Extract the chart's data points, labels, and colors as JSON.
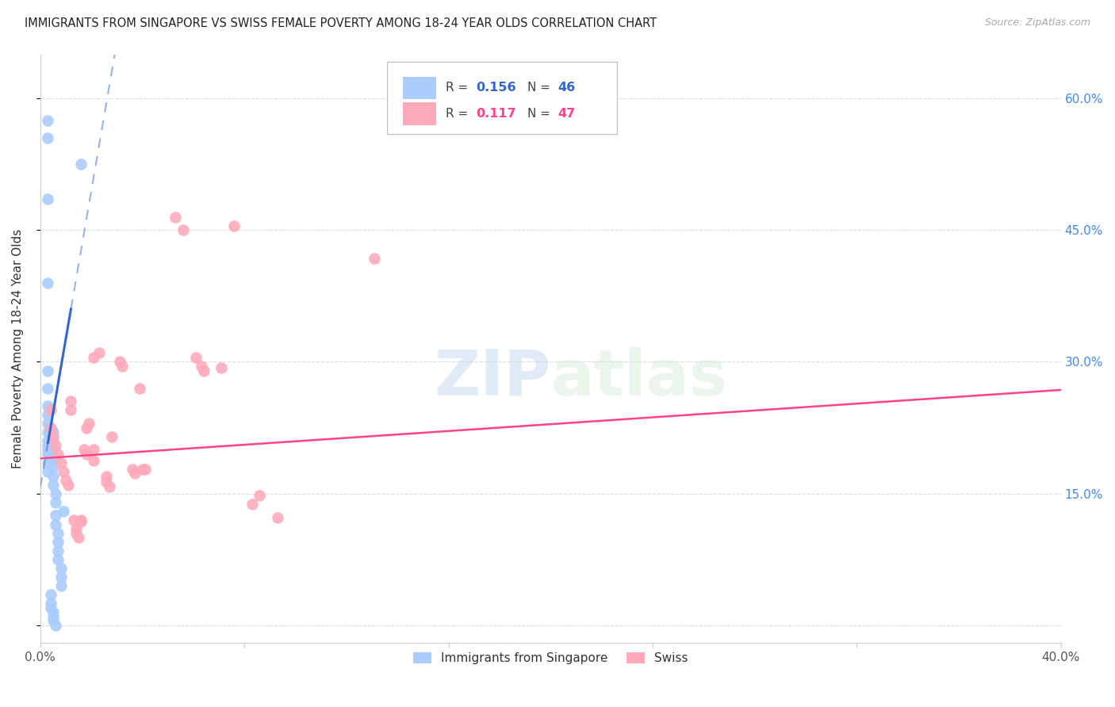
{
  "title": "IMMIGRANTS FROM SINGAPORE VS SWISS FEMALE POVERTY AMONG 18-24 YEAR OLDS CORRELATION CHART",
  "source": "Source: ZipAtlas.com",
  "ylabel": "Female Poverty Among 18-24 Year Olds",
  "xlim": [
    0.0,
    0.4
  ],
  "ylim": [
    -0.02,
    0.65
  ],
  "yticks": [
    0.0,
    0.15,
    0.3,
    0.45,
    0.6
  ],
  "ytick_labels": [
    "",
    "15.0%",
    "30.0%",
    "45.0%",
    "60.0%"
  ],
  "xticks": [
    0.0,
    0.08,
    0.16,
    0.24,
    0.32,
    0.4
  ],
  "xtick_labels": [
    "0.0%",
    "",
    "",
    "",
    "",
    "40.0%"
  ],
  "watermark": "ZIPatlas",
  "background_color": "#ffffff",
  "grid_color": "#dddddd",
  "title_color": "#222222",
  "axis_label_color": "#333333",
  "right_tick_color": "#4488ee",
  "singapore_color": "#aaccff",
  "swiss_color": "#ffaabb",
  "singapore_line_color": "#3366cc",
  "swiss_line_color": "#ff4488",
  "singapore_scatter": [
    [
      0.003,
      0.575
    ],
    [
      0.003,
      0.555
    ],
    [
      0.016,
      0.525
    ],
    [
      0.003,
      0.485
    ],
    [
      0.003,
      0.39
    ],
    [
      0.003,
      0.29
    ],
    [
      0.003,
      0.27
    ],
    [
      0.003,
      0.25
    ],
    [
      0.003,
      0.24
    ],
    [
      0.003,
      0.23
    ],
    [
      0.003,
      0.22
    ],
    [
      0.003,
      0.21
    ],
    [
      0.003,
      0.205
    ],
    [
      0.003,
      0.2
    ],
    [
      0.003,
      0.195
    ],
    [
      0.005,
      0.22
    ],
    [
      0.005,
      0.21
    ],
    [
      0.005,
      0.2
    ],
    [
      0.005,
      0.19
    ],
    [
      0.005,
      0.18
    ],
    [
      0.005,
      0.17
    ],
    [
      0.005,
      0.16
    ],
    [
      0.006,
      0.15
    ],
    [
      0.006,
      0.14
    ],
    [
      0.006,
      0.125
    ],
    [
      0.006,
      0.115
    ],
    [
      0.007,
      0.105
    ],
    [
      0.007,
      0.095
    ],
    [
      0.007,
      0.085
    ],
    [
      0.007,
      0.075
    ],
    [
      0.008,
      0.065
    ],
    [
      0.008,
      0.055
    ],
    [
      0.008,
      0.045
    ],
    [
      0.004,
      0.035
    ],
    [
      0.004,
      0.025
    ],
    [
      0.004,
      0.02
    ],
    [
      0.005,
      0.015
    ],
    [
      0.005,
      0.01
    ],
    [
      0.005,
      0.005
    ],
    [
      0.006,
      0.0
    ],
    [
      0.009,
      0.13
    ],
    [
      0.003,
      0.175
    ],
    [
      0.003,
      0.185
    ],
    [
      0.004,
      0.19
    ],
    [
      0.004,
      0.215
    ],
    [
      0.004,
      0.225
    ]
  ],
  "swiss_scatter": [
    [
      0.004,
      0.245
    ],
    [
      0.004,
      0.225
    ],
    [
      0.005,
      0.215
    ],
    [
      0.006,
      0.205
    ],
    [
      0.007,
      0.195
    ],
    [
      0.008,
      0.185
    ],
    [
      0.009,
      0.175
    ],
    [
      0.01,
      0.165
    ],
    [
      0.011,
      0.16
    ],
    [
      0.012,
      0.255
    ],
    [
      0.012,
      0.245
    ],
    [
      0.013,
      0.12
    ],
    [
      0.014,
      0.11
    ],
    [
      0.014,
      0.105
    ],
    [
      0.015,
      0.1
    ],
    [
      0.016,
      0.12
    ],
    [
      0.016,
      0.118
    ],
    [
      0.017,
      0.2
    ],
    [
      0.018,
      0.195
    ],
    [
      0.018,
      0.225
    ],
    [
      0.019,
      0.23
    ],
    [
      0.021,
      0.2
    ],
    [
      0.021,
      0.188
    ],
    [
      0.021,
      0.305
    ],
    [
      0.023,
      0.31
    ],
    [
      0.026,
      0.17
    ],
    [
      0.026,
      0.163
    ],
    [
      0.027,
      0.158
    ],
    [
      0.028,
      0.215
    ],
    [
      0.031,
      0.3
    ],
    [
      0.032,
      0.295
    ],
    [
      0.036,
      0.178
    ],
    [
      0.037,
      0.173
    ],
    [
      0.039,
      0.27
    ],
    [
      0.041,
      0.178
    ],
    [
      0.053,
      0.465
    ],
    [
      0.056,
      0.45
    ],
    [
      0.061,
      0.305
    ],
    [
      0.063,
      0.295
    ],
    [
      0.064,
      0.29
    ],
    [
      0.071,
      0.293
    ],
    [
      0.076,
      0.455
    ],
    [
      0.083,
      0.138
    ],
    [
      0.086,
      0.148
    ],
    [
      0.093,
      0.123
    ],
    [
      0.131,
      0.418
    ],
    [
      0.04,
      0.178
    ]
  ],
  "singapore_line_solid": [
    [
      0.003,
      0.208
    ],
    [
      0.012,
      0.36
    ]
  ],
  "singapore_line_dashed": [
    [
      0.0,
      0.185
    ],
    [
      0.012,
      0.36
    ]
  ],
  "swiss_line": [
    [
      0.0,
      0.19
    ],
    [
      0.4,
      0.268
    ]
  ]
}
